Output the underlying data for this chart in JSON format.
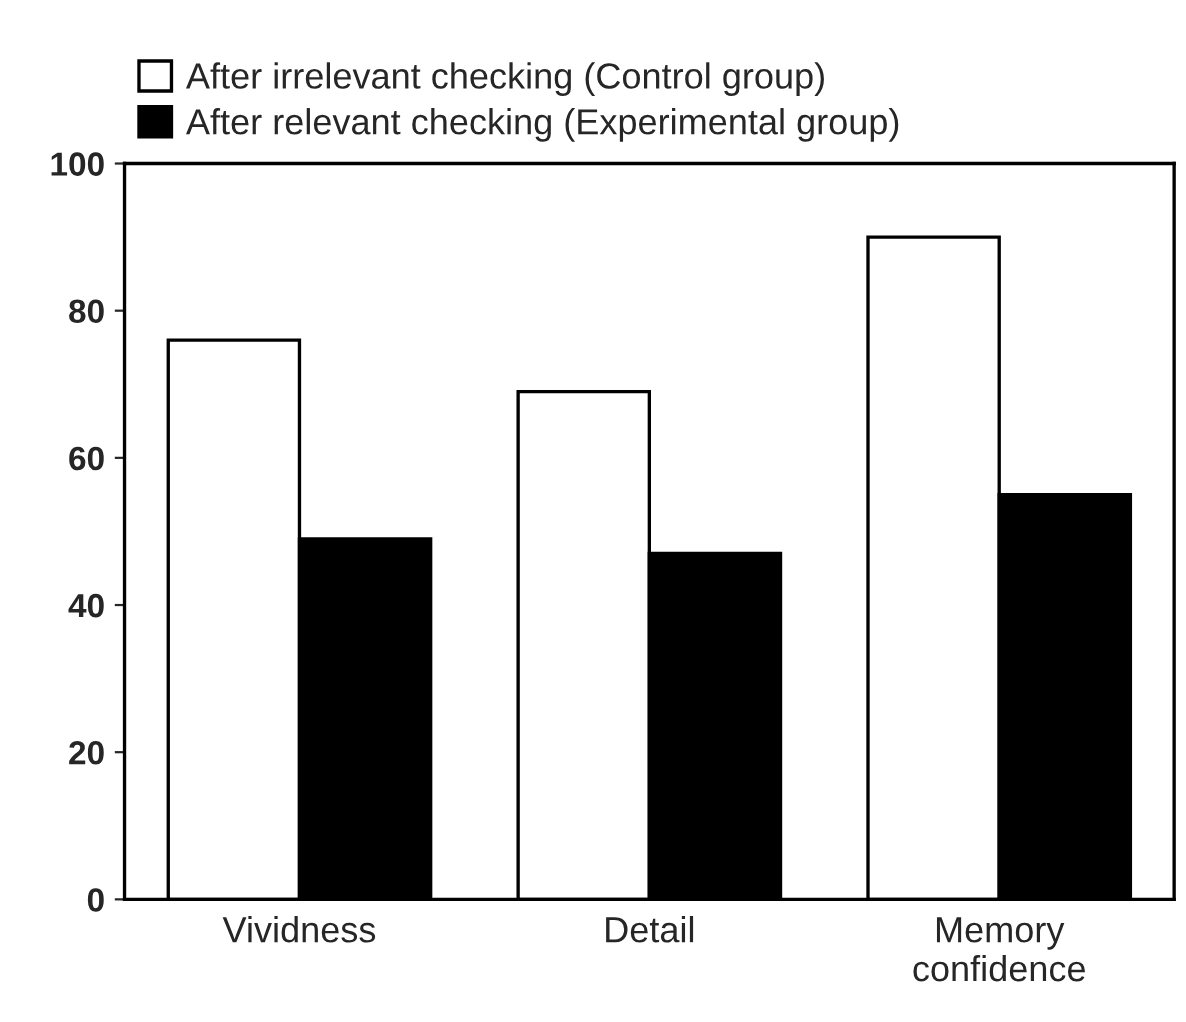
{
  "chart_data": {
    "type": "bar",
    "categories": [
      "Vividness",
      "Detail",
      "Memory\nconfidence"
    ],
    "series": [
      {
        "name": "After irrelevant checking (Control group)",
        "color": "#ffffff",
        "values": [
          76,
          69,
          90
        ]
      },
      {
        "name": "After relevant checking (Experimental group)",
        "color": "#000000",
        "values": [
          49,
          47,
          55
        ]
      }
    ],
    "ylim": [
      0,
      100
    ],
    "yticks": [
      0,
      20,
      40,
      60,
      80,
      100
    ],
    "grid": false,
    "legend": "top left"
  }
}
